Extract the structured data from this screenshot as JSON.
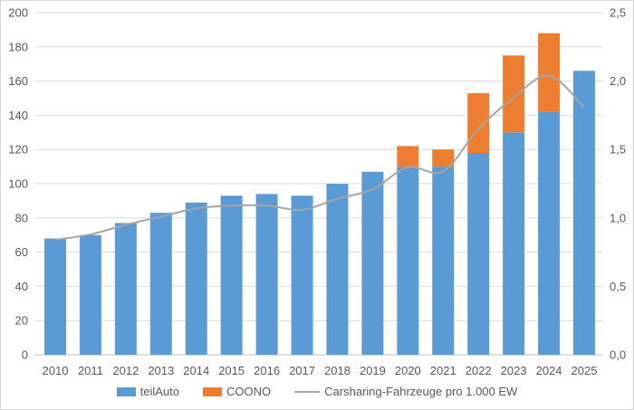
{
  "chart_data": {
    "type": "bar",
    "subtype": "stacked-columns-with-line-on-secondary-axis",
    "categories": [
      "2010",
      "2011",
      "2012",
      "2013",
      "2014",
      "2015",
      "2016",
      "2017",
      "2018",
      "2019",
      "2020",
      "2021",
      "2022",
      "2023",
      "2024",
      "2025"
    ],
    "series": [
      {
        "name": "teilAuto",
        "type": "column",
        "axis": "left",
        "color": "#5B9BD5",
        "values": [
          68,
          70,
          77,
          83,
          89,
          93,
          94,
          93,
          100,
          107,
          110,
          110,
          118,
          130,
          142,
          166
        ]
      },
      {
        "name": "COONO",
        "type": "column",
        "axis": "left",
        "color": "#ED7D31",
        "values": [
          0,
          0,
          0,
          0,
          0,
          0,
          0,
          0,
          0,
          0,
          12,
          10,
          35,
          45,
          46,
          0
        ]
      },
      {
        "name": "Carsharing-Fahrzeuge pro 1.000 EW",
        "type": "line",
        "axis": "right",
        "color": "#A5A5A5",
        "values": [
          0.84,
          0.88,
          0.95,
          1.01,
          1.07,
          1.09,
          1.09,
          1.06,
          1.14,
          1.21,
          1.37,
          1.34,
          1.65,
          1.88,
          2.04,
          1.81
        ]
      }
    ],
    "left_axis": {
      "min": 0,
      "max": 200,
      "step": 20,
      "tick_labels": [
        "0",
        "20",
        "40",
        "60",
        "80",
        "100",
        "120",
        "140",
        "160",
        "180",
        "200"
      ]
    },
    "right_axis": {
      "min": 0,
      "max": 2.5,
      "step": 0.5,
      "tick_labels": [
        "0,0",
        "0,5",
        "1,0",
        "1,5",
        "2,0",
        "2,5"
      ]
    },
    "grid": true,
    "legend_position": "bottom"
  },
  "colors": {
    "grid": "#D9D9D9",
    "axis_line": "#BFBFBF",
    "text": "#595959",
    "background": "#FFFFFF",
    "border": "#D6D6D6"
  }
}
